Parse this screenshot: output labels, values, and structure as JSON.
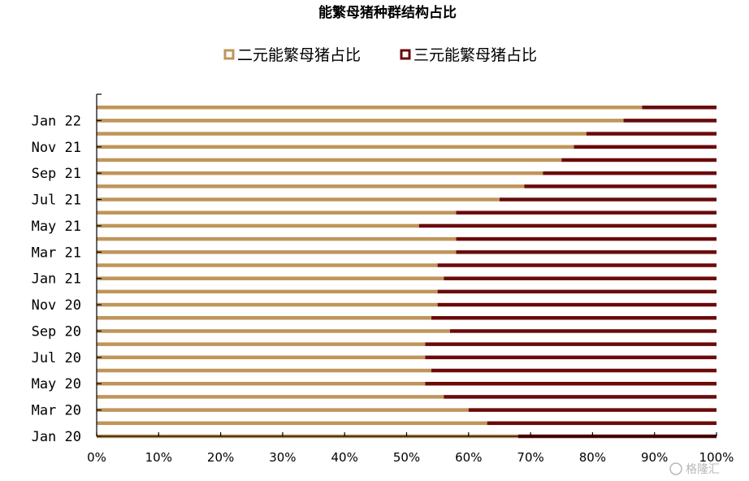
{
  "chart_data": {
    "type": "bar",
    "orientation": "horizontal",
    "stacked": true,
    "title": "能繁母猪种群结构占比",
    "xlim": [
      0,
      100
    ],
    "x_ticks": [
      "0%",
      "10%",
      "20%",
      "30%",
      "40%",
      "50%",
      "60%",
      "70%",
      "80%",
      "90%",
      "100%"
    ],
    "y_tick_labels": [
      "Jan 20",
      "Mar 20",
      "May 20",
      "Jul 20",
      "Sep 20",
      "Nov 20",
      "Jan 21",
      "Mar 21",
      "May 21",
      "Jul 21",
      "Sep 21",
      "Nov 21",
      "Jan 22"
    ],
    "categories": [
      "Jan 20",
      "Feb 20",
      "Mar 20",
      "Apr 20",
      "May 20",
      "Jun 20",
      "Jul 20",
      "Aug 20",
      "Sep 20",
      "Oct 20",
      "Nov 20",
      "Dec 20",
      "Jan 21",
      "Feb 21",
      "Mar 21",
      "Apr 21",
      "May 21",
      "Jun 21",
      "Jul 21",
      "Aug 21",
      "Sep 21",
      "Oct 21",
      "Nov 21",
      "Dec 21",
      "Jan 22",
      "Feb 22"
    ],
    "series": [
      {
        "name": "二元能繁母猪占比",
        "color": "#C0955A",
        "values": [
          68,
          63,
          60,
          56,
          53,
          54,
          53,
          53,
          57,
          54,
          55,
          55,
          56,
          55,
          58,
          58,
          52,
          58,
          65,
          69,
          72,
          75,
          77,
          79,
          85,
          88
        ]
      },
      {
        "name": "三元能繁母猪占比",
        "color": "#6B0A0A",
        "values": [
          32,
          37,
          40,
          44,
          47,
          46,
          47,
          47,
          43,
          46,
          45,
          45,
          44,
          45,
          42,
          42,
          48,
          42,
          35,
          31,
          28,
          25,
          23,
          21,
          15,
          12
        ]
      }
    ],
    "legend_position": "top"
  },
  "watermark": "格隆汇"
}
